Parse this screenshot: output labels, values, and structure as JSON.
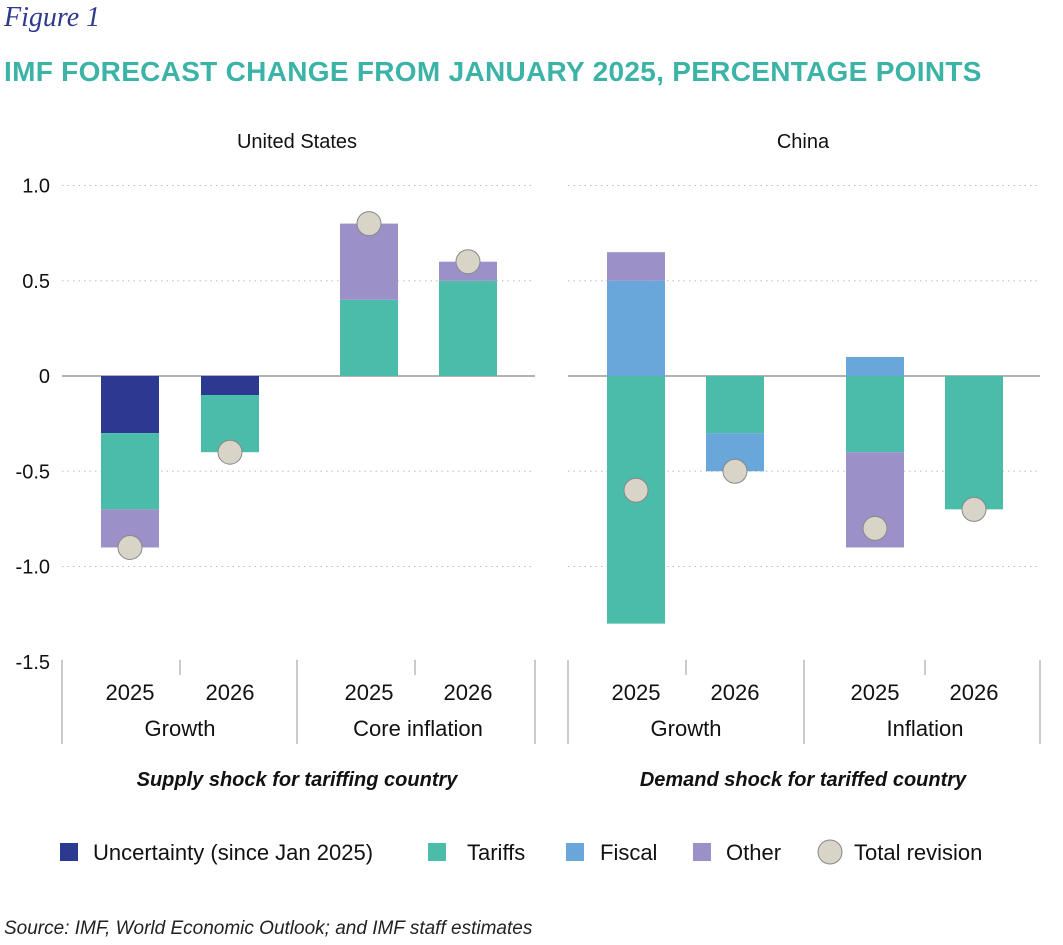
{
  "figure_label": "Figure 1",
  "title": "IMF FORECAST CHANGE FROM JANUARY 2025, PERCENTAGE POINTS",
  "source": "Source: IMF, World Economic Outlook; and IMF staff estimates",
  "colors": {
    "uncertainty": "#2b3990",
    "tariffs": "#4bbcaa",
    "fiscal": "#69a6d9",
    "other": "#9b91c8",
    "total": "#d9d4c8",
    "title": "#3bb3a6",
    "figure_label": "#2e3a8c"
  },
  "chart_data": [
    {
      "type": "bar",
      "stacked": true,
      "title": "United States",
      "subtitle": "Supply shock for tariffing country",
      "ylim": [
        -1.5,
        1.0
      ],
      "yticks": [
        1.0,
        0.5,
        0,
        -0.5,
        -1.0,
        -1.5
      ],
      "ytick_labels": [
        "1.0",
        "0.5",
        "0",
        "-0.5",
        "-1.0",
        "-1.5"
      ],
      "groups": [
        {
          "label": "Growth",
          "categories": [
            "2025",
            "2026"
          ]
        },
        {
          "label": "Core inflation",
          "categories": [
            "2025",
            "2026"
          ]
        }
      ],
      "bars": [
        {
          "group": "Growth",
          "category": "2025",
          "segments": {
            "uncertainty": -0.3,
            "tariffs": -0.4,
            "fiscal": 0,
            "other": -0.2
          },
          "total": -0.9
        },
        {
          "group": "Growth",
          "category": "2026",
          "segments": {
            "uncertainty": -0.1,
            "tariffs": -0.3,
            "fiscal": 0,
            "other": 0
          },
          "total": -0.4
        },
        {
          "group": "Core inflation",
          "category": "2025",
          "segments": {
            "uncertainty": 0,
            "tariffs": 0.4,
            "fiscal": 0,
            "other": 0.4
          },
          "total": 0.8
        },
        {
          "group": "Core inflation",
          "category": "2026",
          "segments": {
            "uncertainty": 0,
            "tariffs": 0.5,
            "fiscal": 0,
            "other": 0.1
          },
          "total": 0.6
        }
      ]
    },
    {
      "type": "bar",
      "stacked": true,
      "title": "China",
      "subtitle": "Demand shock for tariffed country",
      "ylim": [
        -1.5,
        1.0
      ],
      "yticks": [
        1.0,
        0.5,
        0,
        -0.5,
        -1.0,
        -1.5
      ],
      "groups": [
        {
          "label": "Growth",
          "categories": [
            "2025",
            "2026"
          ]
        },
        {
          "label": "Inflation",
          "categories": [
            "2025",
            "2026"
          ]
        }
      ],
      "bars": [
        {
          "group": "Growth",
          "category": "2025",
          "segments": {
            "uncertainty": 0,
            "tariffs": -1.3,
            "fiscal": 0.5,
            "other": 0.15
          },
          "total": -0.6
        },
        {
          "group": "Growth",
          "category": "2026",
          "segments": {
            "uncertainty": 0,
            "tariffs": -0.3,
            "fiscal": -0.2,
            "other": 0
          },
          "total": -0.5
        },
        {
          "group": "Inflation",
          "category": "2025",
          "segments": {
            "uncertainty": 0,
            "tariffs": -0.4,
            "fiscal": 0.1,
            "other": -0.5
          },
          "total": -0.8
        },
        {
          "group": "Inflation",
          "category": "2026",
          "segments": {
            "uncertainty": 0,
            "tariffs": -0.7,
            "fiscal": 0,
            "other": 0
          },
          "total": -0.7
        }
      ]
    }
  ],
  "legend": [
    {
      "key": "uncertainty",
      "label": "Uncertainty (since Jan 2025)",
      "marker": "square"
    },
    {
      "key": "tariffs",
      "label": "Tariffs",
      "marker": "square"
    },
    {
      "key": "fiscal",
      "label": "Fiscal",
      "marker": "square"
    },
    {
      "key": "other",
      "label": "Other",
      "marker": "square"
    },
    {
      "key": "total",
      "label": "Total revision",
      "marker": "circle"
    }
  ]
}
